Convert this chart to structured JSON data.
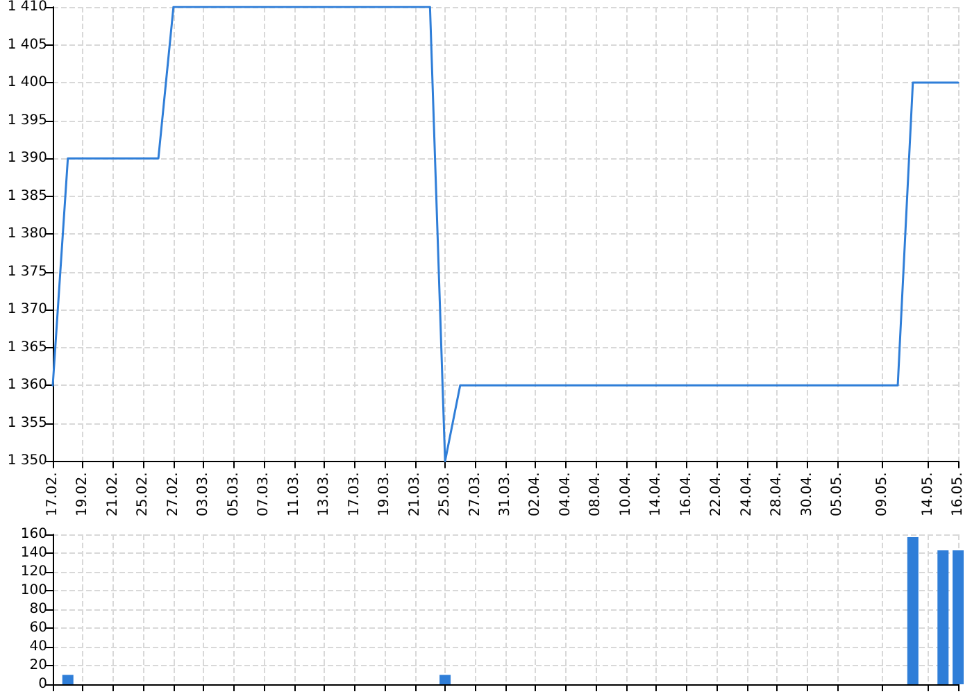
{
  "chart_data": [
    {
      "type": "line",
      "categories": [
        "17.02.",
        null,
        "19.02.",
        null,
        "21.02.",
        null,
        "25.02.",
        null,
        "27.02.",
        null,
        "03.03.",
        null,
        "05.03.",
        null,
        "07.03.",
        null,
        "11.03.",
        null,
        "13.03.",
        null,
        "17.03.",
        null,
        "19.03.",
        null,
        "21.03.",
        null,
        "25.03.",
        null,
        "27.03.",
        null,
        "31.03.",
        null,
        "02.04.",
        null,
        "04.04.",
        null,
        "08.04.",
        null,
        "10.04.",
        null,
        "14.04.",
        null,
        "16.04.",
        null,
        "22.04.",
        null,
        "24.04.",
        null,
        "28.04.",
        null,
        "30.04.",
        null,
        "05.05.",
        null,
        null,
        "09.05.",
        null,
        null,
        "14.05.",
        null,
        "16.05."
      ],
      "series": [
        {
          "color": "#2f7ed8",
          "values": [
            1360,
            1390,
            1390,
            1390,
            1390,
            1390,
            1390,
            1390,
            1410,
            1410,
            1410,
            1410,
            1410,
            1410,
            1410,
            1410,
            1410,
            1410,
            1410,
            1410,
            1410,
            1410,
            1410,
            1410,
            1410,
            1410,
            1350,
            1360,
            1360,
            1360,
            1360,
            1360,
            1360,
            1360,
            1360,
            1360,
            1360,
            1360,
            1360,
            1360,
            1360,
            1360,
            1360,
            1360,
            1360,
            1360,
            1360,
            1360,
            1360,
            1360,
            1360,
            1360,
            1360,
            1360,
            1360,
            1360,
            1360,
            1400,
            1400,
            1400,
            1400
          ]
        }
      ],
      "ylim": [
        1350,
        1410
      ],
      "yticks": [
        {
          "value": 1350,
          "label": "1 350"
        },
        {
          "value": 1355,
          "label": "1 355"
        },
        {
          "value": 1360,
          "label": "1 360"
        },
        {
          "value": 1365,
          "label": "1 365"
        },
        {
          "value": 1370,
          "label": "1 370"
        },
        {
          "value": 1375,
          "label": "1 375"
        },
        {
          "value": 1380,
          "label": "1 380"
        },
        {
          "value": 1385,
          "label": "1 385"
        },
        {
          "value": 1390,
          "label": "1 390"
        },
        {
          "value": 1395,
          "label": "1 395"
        },
        {
          "value": 1400,
          "label": "1 400"
        },
        {
          "value": 1405,
          "label": "1 405"
        },
        {
          "value": 1410,
          "label": "1 410"
        }
      ],
      "grid": true,
      "marker": "none",
      "line_style": "solid"
    },
    {
      "type": "bar",
      "categories": [
        "17.02.",
        null,
        "19.02.",
        null,
        "21.02.",
        null,
        "25.02.",
        null,
        "27.02.",
        null,
        "03.03.",
        null,
        "05.03.",
        null,
        "07.03.",
        null,
        "11.03.",
        null,
        "13.03.",
        null,
        "17.03.",
        null,
        "19.03.",
        null,
        "21.03.",
        null,
        "25.03.",
        null,
        "27.03.",
        null,
        "31.03.",
        null,
        "02.04.",
        null,
        "04.04.",
        null,
        "08.04.",
        null,
        "10.04.",
        null,
        "14.04.",
        null,
        "16.04.",
        null,
        "22.04.",
        null,
        "24.04.",
        null,
        "28.04.",
        null,
        "30.04.",
        null,
        "05.05.",
        null,
        null,
        "09.05.",
        null,
        null,
        "14.05.",
        null,
        "16.05."
      ],
      "series": [
        {
          "color": "#2f7ed8",
          "values": [
            0,
            10,
            0,
            0,
            0,
            0,
            0,
            0,
            0,
            0,
            0,
            0,
            0,
            0,
            0,
            0,
            0,
            0,
            0,
            0,
            0,
            0,
            0,
            0,
            0,
            0,
            10,
            0,
            0,
            0,
            0,
            0,
            0,
            0,
            0,
            0,
            0,
            0,
            0,
            0,
            0,
            0,
            0,
            0,
            0,
            0,
            0,
            0,
            0,
            0,
            0,
            0,
            0,
            0,
            0,
            0,
            0,
            157,
            0,
            143,
            143
          ]
        }
      ],
      "ylim": [
        0,
        160
      ],
      "yticks": [
        0,
        20,
        40,
        60,
        80,
        100,
        120,
        140,
        160
      ],
      "grid": true,
      "tick_labels": "y"
    }
  ]
}
